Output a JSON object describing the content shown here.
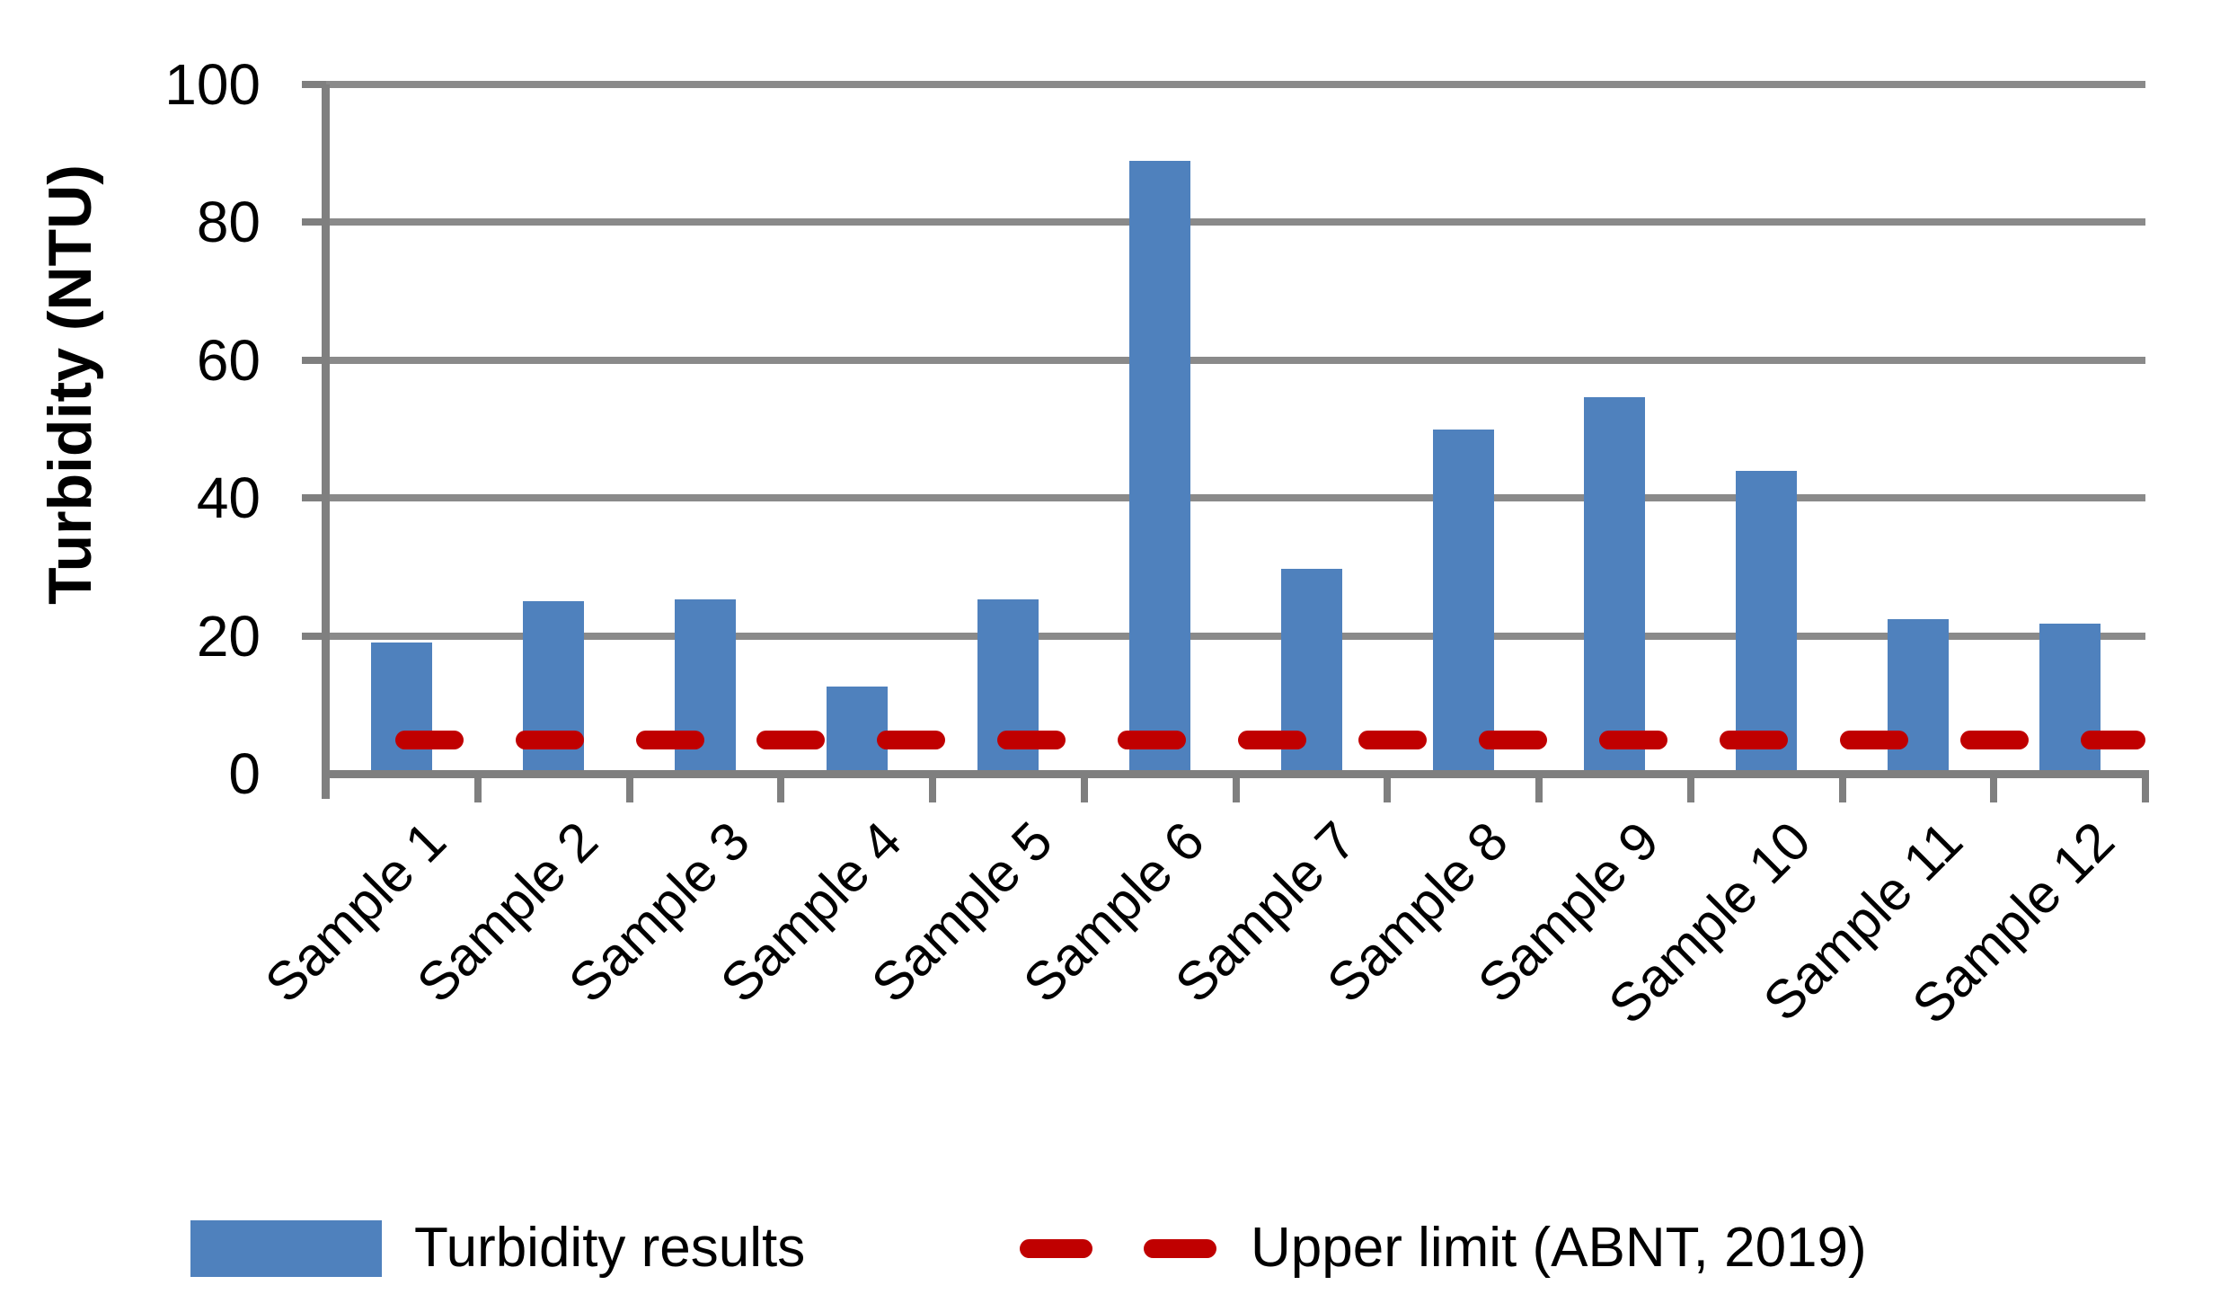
{
  "chart_data": {
    "type": "bar",
    "title": "",
    "categories": [
      "Sample 1",
      "Sample 2",
      "Sample 3",
      "Sample 4",
      "Sample 5",
      "Sample 6",
      "Sample 7",
      "Sample 8",
      "Sample 9",
      "Sample 10",
      "Sample 11",
      "Sample 12"
    ],
    "series": [
      {
        "name": "Turbidity results",
        "type": "bar",
        "color": "#4f81bd",
        "values": [
          19,
          25,
          25.3,
          12.6,
          25.3,
          88.9,
          29.7,
          50,
          54.6,
          43.9,
          22.4,
          21.8
        ]
      },
      {
        "name": "Upper limit (ABNT, 2019)",
        "type": "dashed-line",
        "color": "#c00000",
        "value": 5
      }
    ],
    "xlabel": "",
    "ylabel": "Turbidity (NTU)",
    "ylim": [
      0,
      100
    ],
    "yticks": [
      0,
      20,
      40,
      60,
      80,
      100
    ],
    "grid": true,
    "gridline_color": "#8a8a8a",
    "axis_color": "#7f7f7f",
    "legend_position": "bottom"
  },
  "legend": {
    "items": [
      {
        "label": "Turbidity results",
        "swatch": "bar",
        "color": "#4f81bd"
      },
      {
        "label": "Upper limit (ABNT, 2019)",
        "swatch": "dash",
        "color": "#c00000"
      }
    ]
  }
}
